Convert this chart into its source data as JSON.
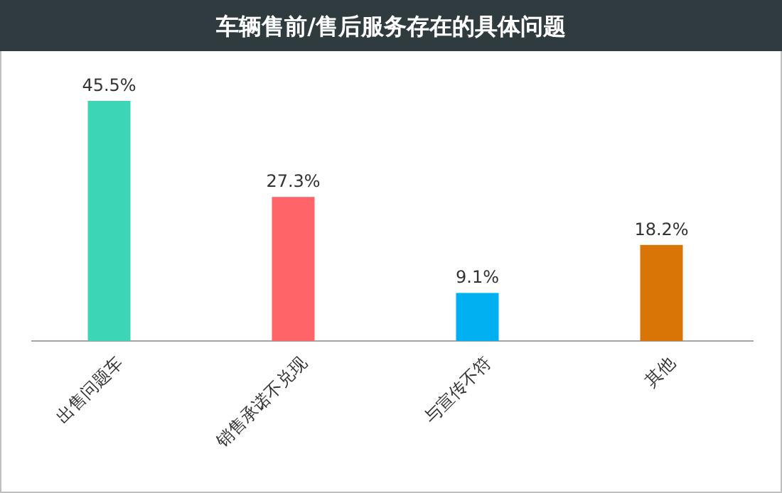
{
  "chart_data": {
    "type": "bar",
    "title": "车辆售前/售后服务存在的具体问题",
    "categories": [
      "出售问题车",
      "销售承诺不兑现",
      "与宣传不符",
      "其他"
    ],
    "values": [
      45.5,
      27.3,
      9.1,
      18.2
    ],
    "colors": [
      "#3cd6b7",
      "#ff6468",
      "#00b0f0",
      "#d97506"
    ],
    "value_labels": [
      "45.5%",
      "27.3%",
      "9.1%",
      "18.2%"
    ]
  }
}
